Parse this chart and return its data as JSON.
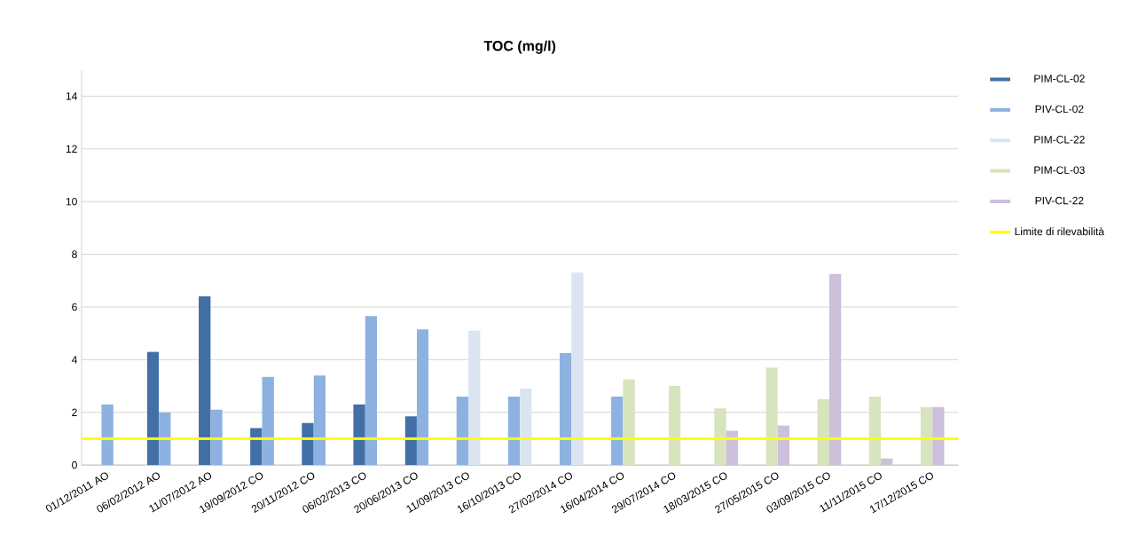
{
  "chart_data": {
    "type": "bar",
    "title": "TOC (mg/l)",
    "categories": [
      "01/12/2011 AO",
      "06/02/2012 AO",
      "11/07/2012 AO",
      "19/09/2012 CO",
      "20/11/2012  CO",
      "06/02/2013 CO",
      "20/06/2013 CO",
      "11/09/2013 CO",
      "16/10/2013 CO",
      "27/02/2014 CO",
      "16/04/2014 CO",
      "29/07/2014 CO",
      "18/03/2015 CO",
      "27/05/2015 CO",
      "03/09/2015 CO",
      "11/11/2015 CO",
      "17/12/2015 CO"
    ],
    "series": [
      {
        "name": "PIM-CL-02",
        "color": "#416fa6",
        "values": [
          null,
          4.3,
          6.4,
          1.4,
          1.6,
          2.3,
          1.85,
          null,
          null,
          null,
          null,
          null,
          null,
          null,
          null,
          null,
          null
        ]
      },
      {
        "name": "PIV-CL-02",
        "color": "#8db1e0",
        "values": [
          2.3,
          2.0,
          2.1,
          3.35,
          3.4,
          5.65,
          5.15,
          2.6,
          2.6,
          4.25,
          2.6,
          null,
          null,
          null,
          null,
          null,
          null
        ]
      },
      {
        "name": "PIM-CL-22",
        "color": "#dbe5f1",
        "values": [
          null,
          null,
          null,
          null,
          null,
          null,
          null,
          5.1,
          2.9,
          7.3,
          null,
          null,
          null,
          null,
          null,
          null,
          null
        ]
      },
      {
        "name": "PIM-CL-03",
        "color": "#d7e4bd",
        "values": [
          null,
          null,
          null,
          null,
          null,
          null,
          null,
          null,
          null,
          null,
          3.25,
          3.0,
          2.15,
          3.7,
          2.5,
          2.6,
          2.2
        ]
      },
      {
        "name": "PIV-CL-22",
        "color": "#ccc0da",
        "values": [
          null,
          null,
          null,
          null,
          null,
          null,
          null,
          null,
          null,
          null,
          null,
          null,
          1.3,
          1.5,
          7.25,
          0.25,
          2.2
        ]
      }
    ],
    "ref_lines": [
      {
        "axis": "y",
        "value": 1.0,
        "label": "Limite di rilevabilità",
        "color": "#ffff00"
      }
    ],
    "ylim": [
      0,
      15
    ],
    "yticks": [
      0,
      2,
      4,
      6,
      8,
      10,
      12,
      14
    ],
    "grid": "y",
    "legend": "right"
  }
}
